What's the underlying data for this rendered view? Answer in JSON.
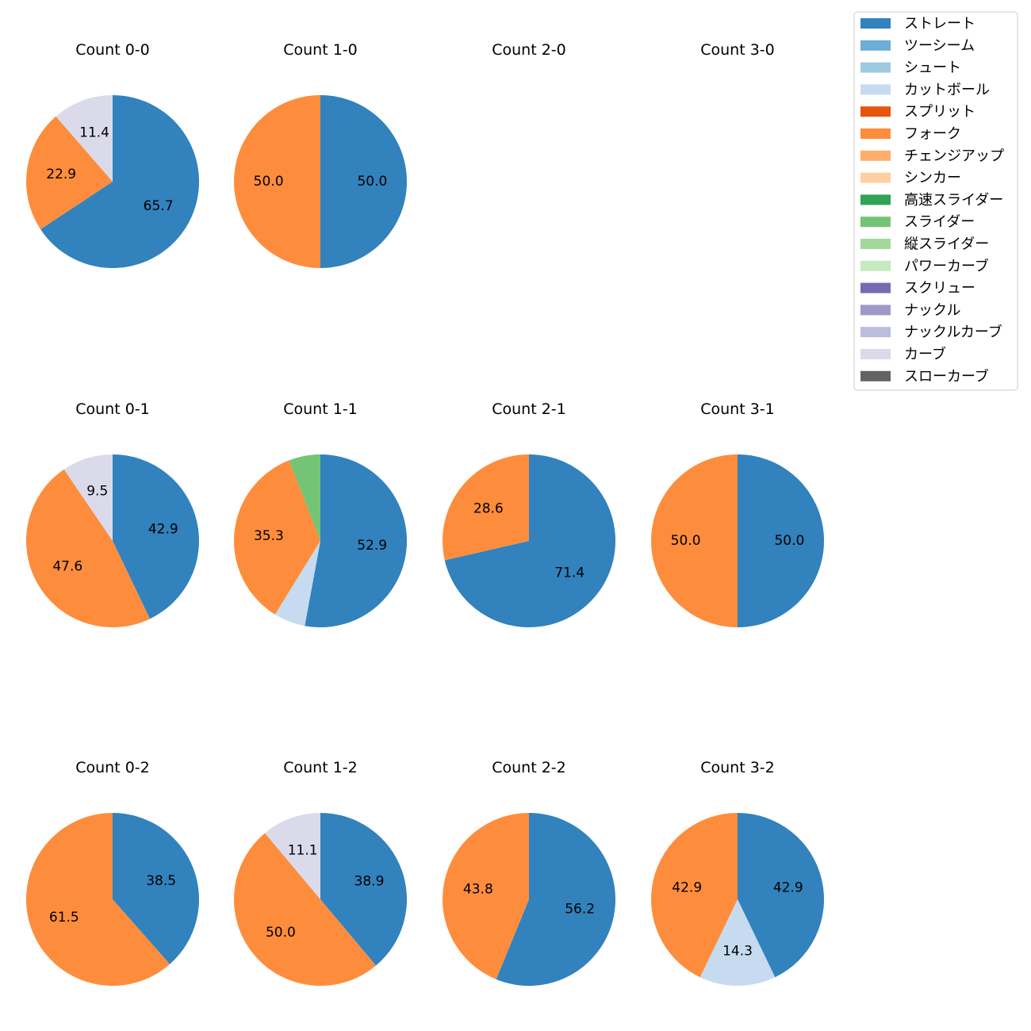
{
  "chart_data": {
    "type": "pie",
    "legend_position": "top-right",
    "pitch_types": [
      {
        "name": "ストレート",
        "color": "#3182bd"
      },
      {
        "name": "ツーシーム",
        "color": "#6baed6"
      },
      {
        "name": "シュート",
        "color": "#9ecae1"
      },
      {
        "name": "カットボール",
        "color": "#c6dbef"
      },
      {
        "name": "スプリット",
        "color": "#e6550d"
      },
      {
        "name": "フォーク",
        "color": "#fd8d3c"
      },
      {
        "name": "チェンジアップ",
        "color": "#fdae6b"
      },
      {
        "name": "シンカー",
        "color": "#fdd0a2"
      },
      {
        "name": "高速スライダー",
        "color": "#31a354"
      },
      {
        "name": "スライダー",
        "color": "#74c476"
      },
      {
        "name": "縦スライダー",
        "color": "#a1d99b"
      },
      {
        "name": "パワーカーブ",
        "color": "#c7e9c0"
      },
      {
        "name": "スクリュー",
        "color": "#756bb1"
      },
      {
        "name": "ナックル",
        "color": "#9e9ac8"
      },
      {
        "name": "ナックルカーブ",
        "color": "#bcbddc"
      },
      {
        "name": "カーブ",
        "color": "#dadaeb"
      },
      {
        "name": "スローカーブ",
        "color": "#636363"
      }
    ],
    "charts": [
      {
        "title": "Count 0-0",
        "slices": [
          {
            "type": "ストレート",
            "value": 65.7
          },
          {
            "type": "フォーク",
            "value": 22.9
          },
          {
            "type": "カーブ",
            "value": 11.4
          }
        ]
      },
      {
        "title": "Count 1-0",
        "slices": [
          {
            "type": "ストレート",
            "value": 50.0
          },
          {
            "type": "フォーク",
            "value": 50.0
          }
        ]
      },
      {
        "title": "Count 2-0",
        "slices": []
      },
      {
        "title": "Count 3-0",
        "slices": []
      },
      {
        "title": "Count 0-1",
        "slices": [
          {
            "type": "ストレート",
            "value": 42.9
          },
          {
            "type": "フォーク",
            "value": 47.6
          },
          {
            "type": "カーブ",
            "value": 9.5
          }
        ]
      },
      {
        "title": "Count 1-1",
        "slices": [
          {
            "type": "ストレート",
            "value": 52.9
          },
          {
            "type": "カットボール",
            "value": 5.9,
            "hide_label": true
          },
          {
            "type": "フォーク",
            "value": 35.3
          },
          {
            "type": "スライダー",
            "value": 5.9,
            "hide_label": true
          }
        ]
      },
      {
        "title": "Count 2-1",
        "slices": [
          {
            "type": "ストレート",
            "value": 71.4
          },
          {
            "type": "フォーク",
            "value": 28.6
          }
        ]
      },
      {
        "title": "Count 3-1",
        "slices": [
          {
            "type": "ストレート",
            "value": 50.0
          },
          {
            "type": "フォーク",
            "value": 50.0
          }
        ]
      },
      {
        "title": "Count 0-2",
        "slices": [
          {
            "type": "ストレート",
            "value": 38.5
          },
          {
            "type": "フォーク",
            "value": 61.5
          }
        ]
      },
      {
        "title": "Count 1-2",
        "slices": [
          {
            "type": "ストレート",
            "value": 38.9
          },
          {
            "type": "フォーク",
            "value": 50.0
          },
          {
            "type": "カーブ",
            "value": 11.1
          }
        ]
      },
      {
        "title": "Count 2-2",
        "slices": [
          {
            "type": "ストレート",
            "value": 56.2
          },
          {
            "type": "フォーク",
            "value": 43.8
          }
        ]
      },
      {
        "title": "Count 3-2",
        "slices": [
          {
            "type": "ストレート",
            "value": 42.9
          },
          {
            "type": "カットボール",
            "value": 14.3
          },
          {
            "type": "フォーク",
            "value": 42.9
          }
        ]
      }
    ]
  }
}
